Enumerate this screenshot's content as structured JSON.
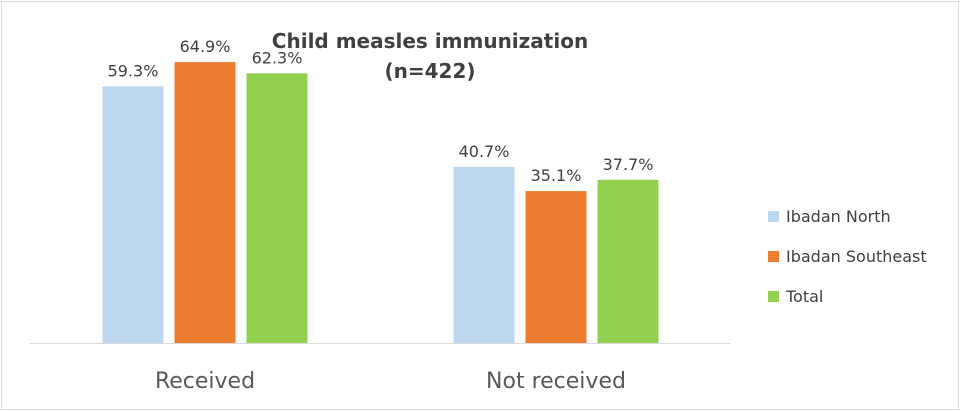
{
  "chart_data": {
    "type": "bar",
    "title": "Child measles immunization",
    "subtitle": "(n=422)",
    "categories": [
      "Received",
      "Not received"
    ],
    "series": [
      {
        "name": "Ibadan North",
        "color": "#bdd7ee",
        "values": [
          59.3,
          40.7
        ],
        "labels": [
          "59.3%",
          "40.7%"
        ]
      },
      {
        "name": "Ibadan Southeast",
        "color": "#ed7d31",
        "values": [
          64.9,
          35.1
        ],
        "labels": [
          "64.9%",
          "35.1%"
        ]
      },
      {
        "name": "Total",
        "color": "#92d050",
        "values": [
          62.3,
          37.7
        ],
        "labels": [
          "62.3%",
          "37.7%"
        ]
      }
    ],
    "ylim": [
      0,
      70
    ],
    "grid": false,
    "legend": "right"
  }
}
